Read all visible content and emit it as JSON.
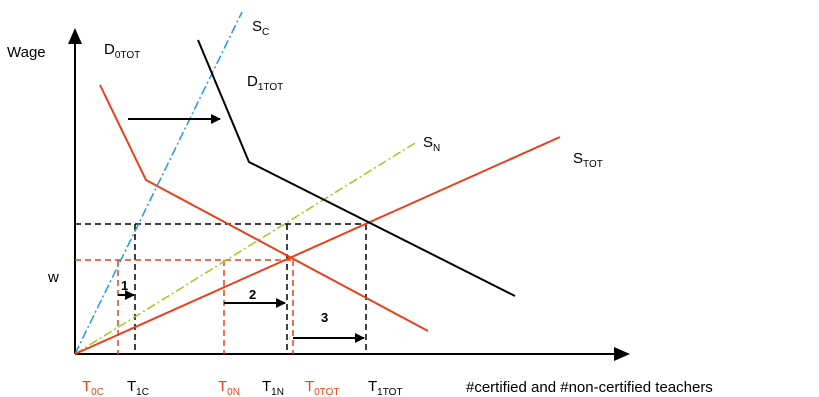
{
  "axes": {
    "y_label": "Wage",
    "x_label": "#certified and #non-certified teachers",
    "w_label": "w"
  },
  "curves": {
    "sc": {
      "main": "S",
      "sub": "C"
    },
    "sn": {
      "main": "S",
      "sub": "N"
    },
    "stot": {
      "main": "S",
      "sub": "TOT"
    },
    "d0": {
      "main": "D",
      "sub": "0TOT"
    },
    "d1": {
      "main": "D",
      "sub": "1TOT"
    }
  },
  "ticks": {
    "t0c": {
      "main": "T",
      "sub": "0C"
    },
    "t1c": {
      "main": "T",
      "sub": "1C"
    },
    "t0n": {
      "main": "T",
      "sub": "0N"
    },
    "t1n": {
      "main": "T",
      "sub": "1N"
    },
    "t0tot": {
      "main": "T",
      "sub": "0TOT"
    },
    "t1tot": {
      "main": "T",
      "sub": "1TOT"
    }
  },
  "shift_labels": {
    "one": "1",
    "two": "2",
    "three": "3"
  },
  "colors": {
    "red": "#e8401c",
    "black": "#000000",
    "blue_dashdot": "#1e9be0",
    "green_dashdot": "#9ccc1e"
  }
}
